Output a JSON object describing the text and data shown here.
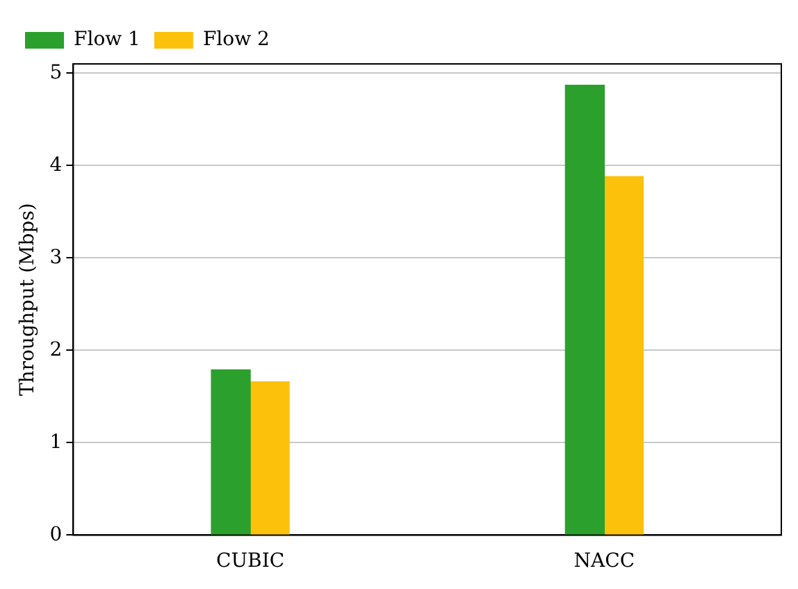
{
  "chart_data": {
    "type": "bar",
    "ylabel": "Throughput (Mbps)",
    "categories": [
      "CUBIC",
      "NACC"
    ],
    "series": [
      {
        "name": "Flow 1",
        "color": "#2ca02c",
        "values": [
          1.79,
          4.87
        ]
      },
      {
        "name": "Flow 2",
        "color": "#fcc10a",
        "values": [
          1.66,
          3.88
        ]
      }
    ],
    "ylim": [
      0,
      5.1
    ],
    "yticks": [
      0,
      1,
      2,
      3,
      4,
      5
    ],
    "grid": "y",
    "legend": "top left"
  }
}
